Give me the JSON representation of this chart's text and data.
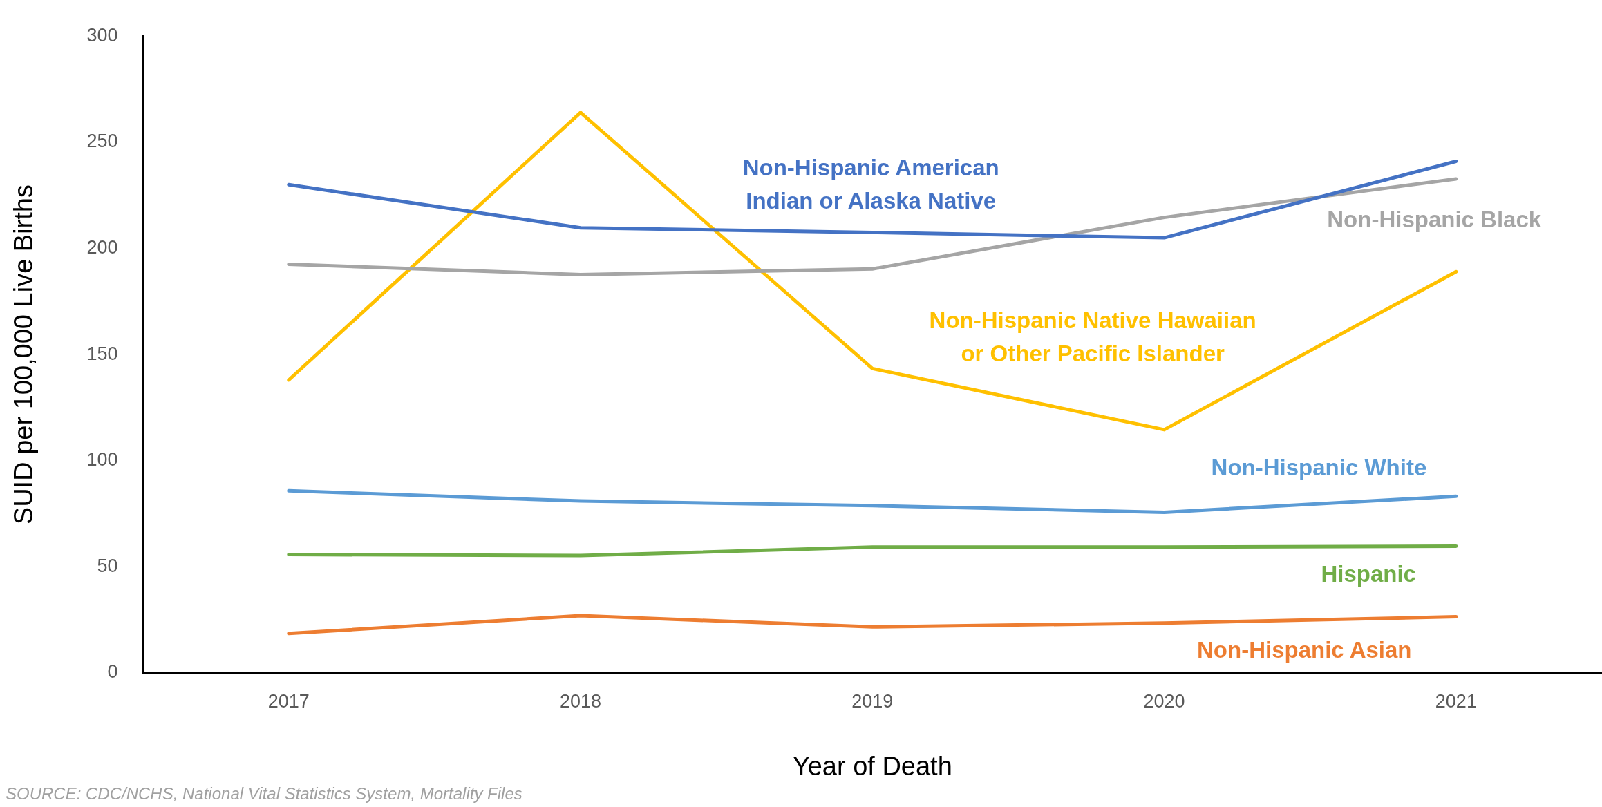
{
  "chart_data": {
    "type": "line",
    "xlabel": "Year of Death",
    "ylabel": "SUID per 100,000 Live Births",
    "categories": [
      "2017",
      "2018",
      "2019",
      "2020",
      "2021"
    ],
    "series": [
      {
        "name": "Non-Hispanic American Indian or Alaska Native",
        "color": "#4472c4",
        "values": [
          230,
          209.7,
          207.5,
          205,
          241
        ]
      },
      {
        "name": "Non-Hispanic Black",
        "color": "#a5a5a5",
        "values": [
          192.5,
          187.6,
          190.3,
          214.6,
          232.7
        ]
      },
      {
        "name": "Non-Hispanic Native Hawaiian or Other Pacific Islander",
        "color": "#ffc000",
        "values": [
          138,
          264,
          143.4,
          114.6,
          189
        ]
      },
      {
        "name": "Non-Hispanic White",
        "color": "#5b9bd5",
        "values": [
          85.8,
          81,
          78.8,
          75.7,
          83.2
        ]
      },
      {
        "name": "Hispanic",
        "color": "#70ad47",
        "values": [
          55.8,
          55.3,
          59.3,
          59.3,
          59.7
        ]
      },
      {
        "name": "Non-Hispanic Asian",
        "color": "#ed7d31",
        "values": [
          18.6,
          27,
          21.7,
          23.5,
          26.5
        ]
      }
    ],
    "ylim": [
      0,
      300
    ],
    "yticks": [
      0,
      50,
      100,
      150,
      200,
      250,
      300
    ],
    "grid": false,
    "legend": false,
    "marker": "none",
    "line_style": "solid",
    "annotations": [
      "SOURCE: CDC/NCHS, National Vital Statistics System, Mortality Files"
    ]
  }
}
